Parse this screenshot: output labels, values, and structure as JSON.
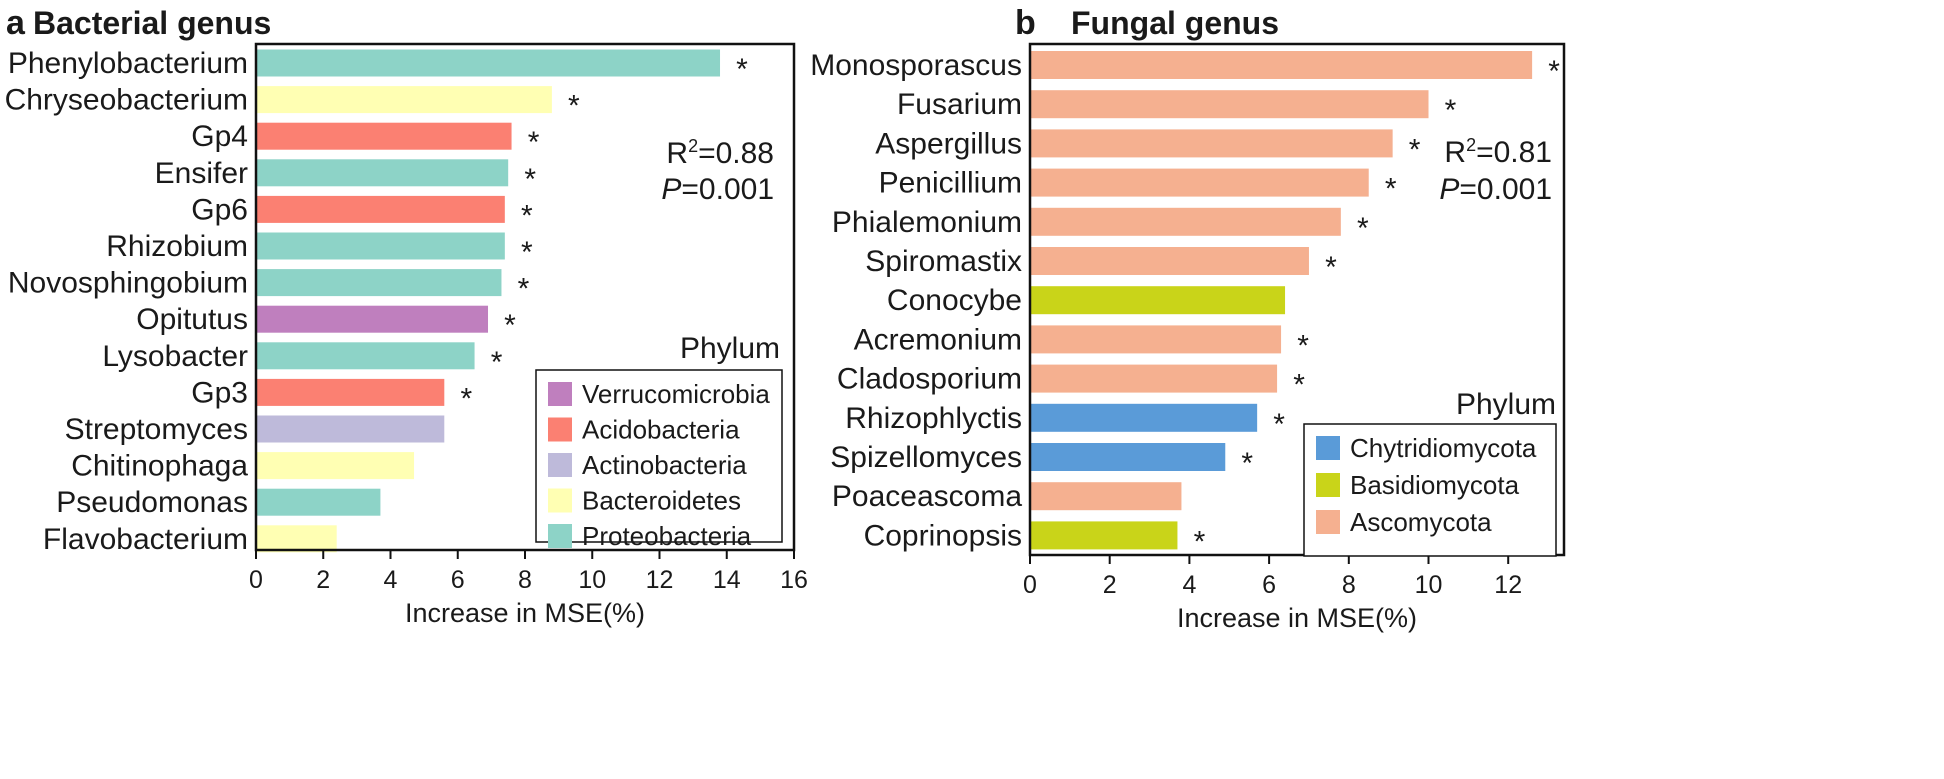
{
  "chart_data": [
    {
      "type": "bar",
      "orientation": "horizontal",
      "panel": "a",
      "title": "Bacterial genus",
      "xlabel": "Increase in MSE(%)",
      "xlim": [
        0,
        16
      ],
      "xticks": [
        0,
        2,
        4,
        6,
        8,
        10,
        12,
        14,
        16
      ],
      "r2_label": "R",
      "r2_sup": "2",
      "r2_value": "=0.88",
      "p_label": "P",
      "p_value": "=0.001",
      "legend_title": "Phylum",
      "legend_position": "bottom-right",
      "legend": [
        {
          "name": "Verrucomicrobia",
          "color": "#bf7fbe"
        },
        {
          "name": "Acidobacteria",
          "color": "#fb8072"
        },
        {
          "name": "Actinobacteria",
          "color": "#bebada"
        },
        {
          "name": "Bacteroidetes",
          "color": "#ffffb3"
        },
        {
          "name": "Proteobacteria",
          "color": "#8dd3c7"
        }
      ],
      "bars": [
        {
          "label": "Phenylobacterium",
          "value": 13.8,
          "phylum": "Proteobacteria",
          "sig": "*"
        },
        {
          "label": "Chryseobacterium",
          "value": 8.8,
          "phylum": "Bacteroidetes",
          "sig": "*"
        },
        {
          "label": "Gp4",
          "value": 7.6,
          "phylum": "Acidobacteria",
          "sig": "*"
        },
        {
          "label": "Ensifer",
          "value": 7.5,
          "phylum": "Proteobacteria",
          "sig": "*"
        },
        {
          "label": "Gp6",
          "value": 7.4,
          "phylum": "Acidobacteria",
          "sig": "*"
        },
        {
          "label": "Rhizobium",
          "value": 7.4,
          "phylum": "Proteobacteria",
          "sig": "*"
        },
        {
          "label": "Novosphingobium",
          "value": 7.3,
          "phylum": "Proteobacteria",
          "sig": "*"
        },
        {
          "label": "Opitutus",
          "value": 6.9,
          "phylum": "Verrucomicrobia",
          "sig": "*"
        },
        {
          "label": "Lysobacter",
          "value": 6.5,
          "phylum": "Proteobacteria",
          "sig": "*"
        },
        {
          "label": "Gp3",
          "value": 5.6,
          "phylum": "Acidobacteria",
          "sig": "*"
        },
        {
          "label": "Streptomyces",
          "value": 5.6,
          "phylum": "Actinobacteria",
          "sig": ""
        },
        {
          "label": "Chitinophaga",
          "value": 4.7,
          "phylum": "Bacteroidetes",
          "sig": ""
        },
        {
          "label": "Pseudomonas",
          "value": 3.7,
          "phylum": "Proteobacteria",
          "sig": ""
        },
        {
          "label": "Flavobacterium",
          "value": 2.4,
          "phylum": "Bacteroidetes",
          "sig": ""
        }
      ]
    },
    {
      "type": "bar",
      "orientation": "horizontal",
      "panel": "b",
      "title": "Fungal genus",
      "xlabel": "Increase in MSE(%)",
      "xlim": [
        0,
        13.4
      ],
      "xticks": [
        0,
        2,
        4,
        6,
        8,
        10,
        12
      ],
      "r2_label": "R",
      "r2_sup": "2",
      "r2_value": "=0.81",
      "p_label": "P",
      "p_value": "=0.001",
      "legend_title": "Phylum",
      "legend_position": "bottom-right",
      "legend": [
        {
          "name": "Chytridiomycota",
          "color": "#5a9bd8"
        },
        {
          "name": "Basidiomycota",
          "color": "#c9d419"
        },
        {
          "name": "Ascomycota",
          "color": "#f5b090"
        }
      ],
      "bars": [
        {
          "label": "Monosporascus",
          "value": 12.6,
          "phylum": "Ascomycota",
          "sig": "*"
        },
        {
          "label": "Fusarium",
          "value": 10.0,
          "phylum": "Ascomycota",
          "sig": "*"
        },
        {
          "label": "Aspergillus",
          "value": 9.1,
          "phylum": "Ascomycota",
          "sig": "*"
        },
        {
          "label": "Penicillium",
          "value": 8.5,
          "phylum": "Ascomycota",
          "sig": "*"
        },
        {
          "label": "Phialemonium",
          "value": 7.8,
          "phylum": "Ascomycota",
          "sig": "*"
        },
        {
          "label": "Spiromastix",
          "value": 7.0,
          "phylum": "Ascomycota",
          "sig": "*"
        },
        {
          "label": "Conocybe",
          "value": 6.4,
          "phylum": "Basidiomycota",
          "sig": ""
        },
        {
          "label": "Acremonium",
          "value": 6.3,
          "phylum": "Ascomycota",
          "sig": "*"
        },
        {
          "label": "Cladosporium",
          "value": 6.2,
          "phylum": "Ascomycota",
          "sig": "*"
        },
        {
          "label": "Rhizophlyctis",
          "value": 5.7,
          "phylum": "Chytridiomycota",
          "sig": "*"
        },
        {
          "label": "Spizellomyces",
          "value": 4.9,
          "phylum": "Chytridiomycota",
          "sig": "*"
        },
        {
          "label": "Poaceascoma",
          "value": 3.8,
          "phylum": "Ascomycota",
          "sig": ""
        },
        {
          "label": "Coprinopsis",
          "value": 3.7,
          "phylum": "Basidiomycota",
          "sig": "*"
        }
      ]
    }
  ]
}
